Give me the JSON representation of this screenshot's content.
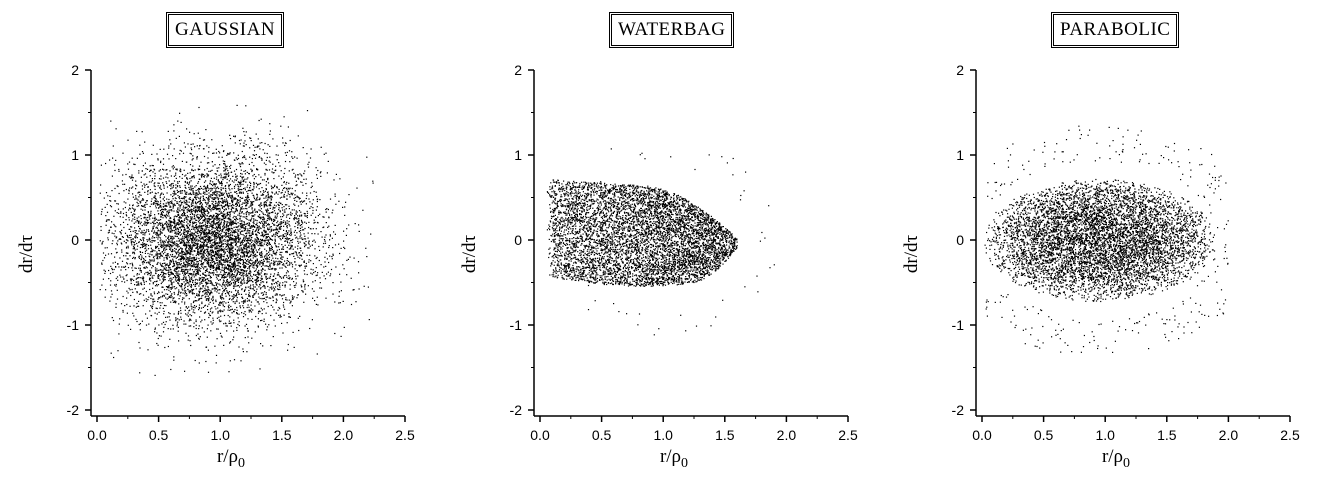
{
  "chart_data": [
    {
      "type": "scatter",
      "title": "GAUSSIAN",
      "xlabel": "r/ρ0",
      "ylabel": "dr/dτ",
      "xlim": [
        0.0,
        2.5
      ],
      "ylim": [
        -2,
        2
      ],
      "xticks": [
        "0.0",
        "0.5",
        "1.0",
        "1.5",
        "2.0",
        "2.5"
      ],
      "yticks": [
        "-2",
        "-1",
        "0",
        "1",
        "2"
      ],
      "distribution": {
        "shape": "gaussian",
        "center": [
          0.95,
          0.0
        ],
        "sigma": [
          0.42,
          0.48
        ],
        "x_range": [
          0.02,
          2.25
        ],
        "y_range": [
          -1.6,
          1.6
        ],
        "n_points": 7000
      }
    },
    {
      "type": "scatter",
      "title": "WATERBAG",
      "xlabel": "r/ρ0",
      "ylabel": "dr/dτ",
      "xlim": [
        0.0,
        2.5
      ],
      "ylim": [
        -2,
        2
      ],
      "xticks": [
        "0.0",
        "0.5",
        "1.0",
        "1.5",
        "2.0",
        "2.5"
      ],
      "yticks": [
        "-2",
        "-1",
        "0",
        "1",
        "2"
      ],
      "distribution": {
        "shape": "waterbag",
        "x_range": [
          0.05,
          1.6
        ],
        "y_range": [
          -0.6,
          0.75
        ],
        "halo_x_range": [
          0.3,
          1.9
        ],
        "halo_y_range": [
          -1.25,
          1.1
        ],
        "n_points": 6000,
        "n_halo": 60
      }
    },
    {
      "type": "scatter",
      "title": "PARABOLIC",
      "xlabel": "r/ρ0",
      "ylabel": "dr/dτ",
      "xlim": [
        0.0,
        2.5
      ],
      "ylim": [
        -2,
        2
      ],
      "xticks": [
        "0.0",
        "0.5",
        "1.0",
        "1.5",
        "2.0",
        "2.5"
      ],
      "yticks": [
        "-2",
        "-1",
        "0",
        "1",
        "2"
      ],
      "distribution": {
        "shape": "parabolic",
        "center": [
          0.95,
          0.0
        ],
        "radius": [
          0.95,
          0.72
        ],
        "x_range": [
          0.02,
          2.0
        ],
        "y_range": [
          -1.35,
          1.35
        ],
        "n_points": 6500,
        "n_halo": 350
      }
    }
  ]
}
